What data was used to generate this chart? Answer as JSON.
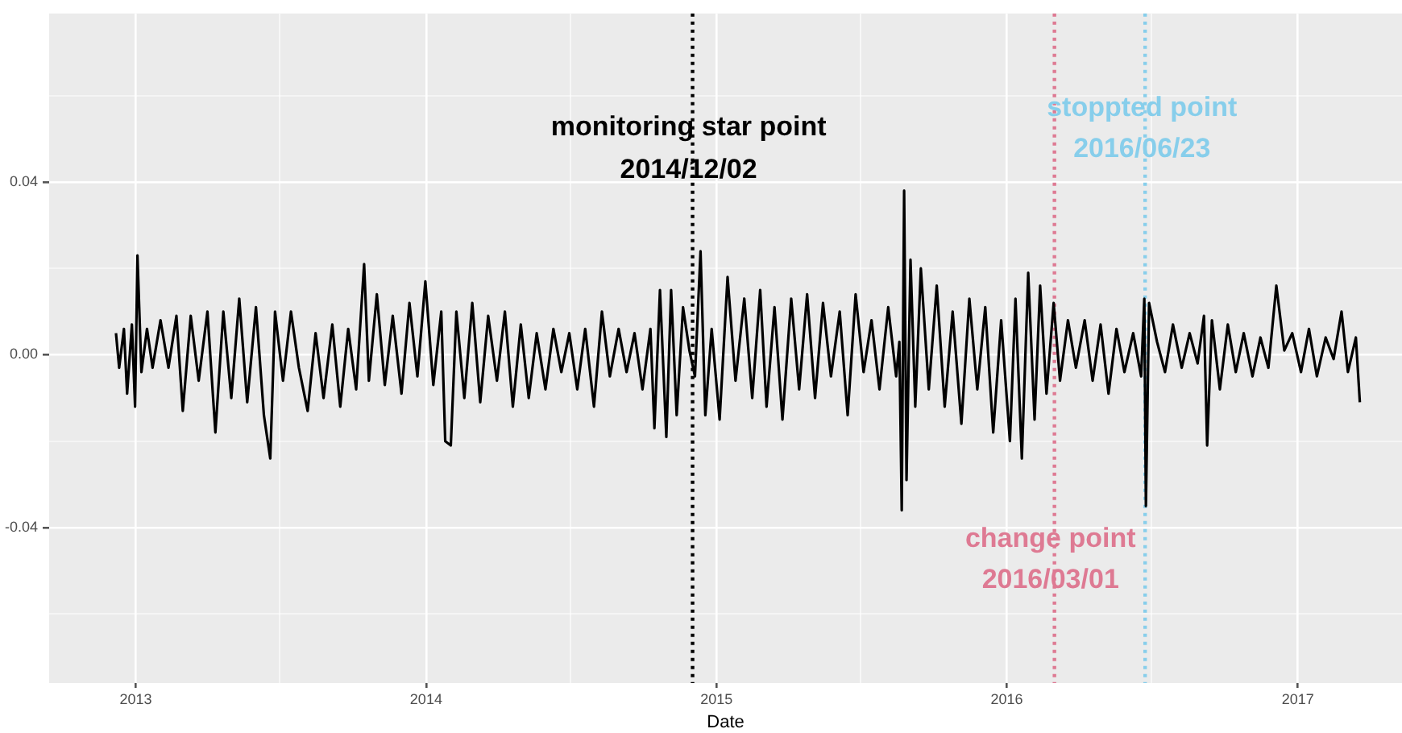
{
  "chart_data": {
    "type": "line",
    "xlabel": "Date",
    "x": [
      "2012-12-07",
      "2012-12-11",
      "2012-12-17",
      "2012-12-21",
      "2012-12-27",
      "2012-12-31",
      "2013-01-03",
      "2013-01-08",
      "2013-01-15",
      "2013-01-22",
      "2013-02-01",
      "2013-02-11",
      "2013-02-21",
      "2013-03-01",
      "2013-03-11",
      "2013-03-21",
      "2013-04-01",
      "2013-04-11",
      "2013-04-21",
      "2013-05-01",
      "2013-05-11",
      "2013-05-21",
      "2013-06-01",
      "2013-06-11",
      "2013-06-19",
      "2013-06-25",
      "2013-07-05",
      "2013-07-15",
      "2013-07-25",
      "2013-08-05",
      "2013-08-15",
      "2013-08-25",
      "2013-09-05",
      "2013-09-15",
      "2013-09-25",
      "2013-10-05",
      "2013-10-15",
      "2013-10-21",
      "2013-10-31",
      "2013-11-10",
      "2013-11-20",
      "2013-12-01",
      "2013-12-11",
      "2013-12-21",
      "2013-12-31",
      "2014-01-10",
      "2014-01-20",
      "2014-01-25",
      "2014-02-01",
      "2014-02-08",
      "2014-02-18",
      "2014-02-28",
      "2014-03-10",
      "2014-03-20",
      "2014-03-31",
      "2014-04-10",
      "2014-04-20",
      "2014-04-30",
      "2014-05-10",
      "2014-05-20",
      "2014-05-31",
      "2014-06-10",
      "2014-06-20",
      "2014-06-30",
      "2014-07-10",
      "2014-07-20",
      "2014-07-31",
      "2014-08-10",
      "2014-08-20",
      "2014-08-31",
      "2014-09-10",
      "2014-09-20",
      "2014-09-30",
      "2014-10-10",
      "2014-10-15",
      "2014-10-22",
      "2014-10-30",
      "2014-11-05",
      "2014-11-12",
      "2014-11-20",
      "2014-11-28",
      "2014-12-05",
      "2014-12-12",
      "2014-12-18",
      "2014-12-26",
      "2015-01-05",
      "2015-01-15",
      "2015-01-25",
      "2015-02-05",
      "2015-02-15",
      "2015-02-25",
      "2015-03-05",
      "2015-03-15",
      "2015-03-25",
      "2015-04-05",
      "2015-04-15",
      "2015-04-25",
      "2015-05-05",
      "2015-05-15",
      "2015-05-25",
      "2015-06-05",
      "2015-06-15",
      "2015-06-25",
      "2015-07-05",
      "2015-07-15",
      "2015-07-25",
      "2015-08-05",
      "2015-08-15",
      "2015-08-19",
      "2015-08-22",
      "2015-08-25",
      "2015-08-28",
      "2015-09-02",
      "2015-09-08",
      "2015-09-15",
      "2015-09-25",
      "2015-10-05",
      "2015-10-15",
      "2015-10-25",
      "2015-11-05",
      "2015-11-15",
      "2015-11-25",
      "2015-12-05",
      "2015-12-15",
      "2015-12-25",
      "2016-01-05",
      "2016-01-12",
      "2016-01-20",
      "2016-01-28",
      "2016-02-05",
      "2016-02-12",
      "2016-02-20",
      "2016-02-29",
      "2016-03-08",
      "2016-03-18",
      "2016-03-28",
      "2016-04-08",
      "2016-04-18",
      "2016-04-28",
      "2016-05-08",
      "2016-05-18",
      "2016-05-28",
      "2016-06-08",
      "2016-06-18",
      "2016-06-22",
      "2016-06-24",
      "2016-06-28",
      "2016-07-08",
      "2016-07-18",
      "2016-07-28",
      "2016-08-08",
      "2016-08-18",
      "2016-08-28",
      "2016-09-05",
      "2016-09-09",
      "2016-09-15",
      "2016-09-25",
      "2016-10-05",
      "2016-10-15",
      "2016-10-25",
      "2016-11-05",
      "2016-11-15",
      "2016-11-25",
      "2016-12-05",
      "2016-12-15",
      "2016-12-25",
      "2017-01-05",
      "2017-01-15",
      "2017-01-25",
      "2017-02-05",
      "2017-02-15",
      "2017-02-25",
      "2017-03-05",
      "2017-03-15",
      "2017-03-20"
    ],
    "series": [
      {
        "color": "#000000",
        "values": [
          0.005,
          -0.003,
          0.006,
          -0.009,
          0.007,
          -0.012,
          0.023,
          -0.004,
          0.006,
          -0.003,
          0.008,
          -0.003,
          0.009,
          -0.013,
          0.009,
          -0.006,
          0.01,
          -0.018,
          0.01,
          -0.01,
          0.013,
          -0.011,
          0.011,
          -0.014,
          -0.024,
          0.01,
          -0.006,
          0.01,
          -0.003,
          -0.013,
          0.005,
          -0.01,
          0.007,
          -0.012,
          0.006,
          -0.008,
          0.021,
          -0.006,
          0.014,
          -0.007,
          0.009,
          -0.009,
          0.012,
          -0.005,
          0.017,
          -0.007,
          0.01,
          -0.02,
          -0.021,
          0.01,
          -0.01,
          0.012,
          -0.011,
          0.009,
          -0.006,
          0.01,
          -0.012,
          0.007,
          -0.01,
          0.005,
          -0.008,
          0.006,
          -0.004,
          0.005,
          -0.008,
          0.006,
          -0.012,
          0.01,
          -0.005,
          0.006,
          -0.004,
          0.005,
          -0.008,
          0.006,
          -0.017,
          0.015,
          -0.019,
          0.015,
          -0.014,
          0.011,
          0.001,
          -0.005,
          0.024,
          -0.014,
          0.006,
          -0.015,
          0.018,
          -0.006,
          0.013,
          -0.01,
          0.015,
          -0.012,
          0.011,
          -0.015,
          0.013,
          -0.008,
          0.014,
          -0.01,
          0.012,
          -0.005,
          0.01,
          -0.014,
          0.014,
          -0.004,
          0.008,
          -0.008,
          0.011,
          -0.005,
          0.003,
          -0.036,
          0.038,
          -0.029,
          0.022,
          -0.012,
          0.02,
          -0.008,
          0.016,
          -0.012,
          0.01,
          -0.016,
          0.013,
          -0.008,
          0.011,
          -0.018,
          0.008,
          -0.02,
          0.013,
          -0.024,
          0.019,
          -0.015,
          0.016,
          -0.009,
          0.012,
          -0.006,
          0.008,
          -0.003,
          0.008,
          -0.006,
          0.007,
          -0.009,
          0.006,
          -0.004,
          0.005,
          -0.005,
          0.013,
          -0.035,
          0.012,
          0.003,
          -0.004,
          0.007,
          -0.003,
          0.005,
          -0.002,
          0.009,
          -0.021,
          0.008,
          -0.008,
          0.007,
          -0.004,
          0.005,
          -0.005,
          0.004,
          -0.003,
          0.016,
          0.001,
          0.005,
          -0.004,
          0.006,
          -0.005,
          0.004,
          -0.001,
          0.01,
          -0.004,
          0.004,
          -0.011
        ]
      }
    ],
    "xlim": [
      "2012-09-14",
      "2017-05-12"
    ],
    "xticks": [
      {
        "value": "2013",
        "label": "2013"
      },
      {
        "value": "2013-07",
        "label": null
      },
      {
        "value": "2014",
        "label": "2014"
      },
      {
        "value": "2014-07",
        "label": null
      },
      {
        "value": "2015",
        "label": "2015"
      },
      {
        "value": "2015-07",
        "label": null
      },
      {
        "value": "2016",
        "label": "2016"
      },
      {
        "value": "2016-07",
        "label": null
      },
      {
        "value": "2017",
        "label": "2017"
      }
    ],
    "ylim": [
      -0.076,
      0.079
    ],
    "yticks": [
      {
        "value": -0.06,
        "label": null
      },
      {
        "value": -0.04,
        "label": "-0.04"
      },
      {
        "value": -0.02,
        "label": null
      },
      {
        "value": 0,
        "label": "0.00"
      },
      {
        "value": 0.02,
        "label": null
      },
      {
        "value": 0.04,
        "label": "0.04"
      },
      {
        "value": 0.06,
        "label": null
      }
    ],
    "grid": true,
    "legend": false,
    "marker": "none",
    "line_style": "solid",
    "ref_lines": [
      {
        "axis": "x",
        "value": "2014-12-02",
        "color": "#000000",
        "line_style": "dotted"
      },
      {
        "axis": "x",
        "value": "2016-03-01",
        "color": "#de7a93",
        "line_style": "dotted"
      },
      {
        "axis": "x",
        "value": "2016-06-23",
        "color": "#87ceeb",
        "line_style": "dotted"
      }
    ],
    "annotations": [
      {
        "text": "monitoring star point",
        "x": "2014-11-27",
        "y": 0.0526
      },
      {
        "text": "2014/12/02",
        "x": "2014-11-27",
        "y": 0.0427
      },
      {
        "text": "stoppted point",
        "x": "2016-06-19",
        "y": 0.057
      },
      {
        "text": "2016/06/23",
        "x": "2016-06-19",
        "y": 0.0476
      },
      {
        "text": "change point",
        "x": "2016-02-25",
        "y": -0.0427
      },
      {
        "text": "2016/03/01",
        "x": "2016-02-25",
        "y": -0.0523
      }
    ]
  }
}
